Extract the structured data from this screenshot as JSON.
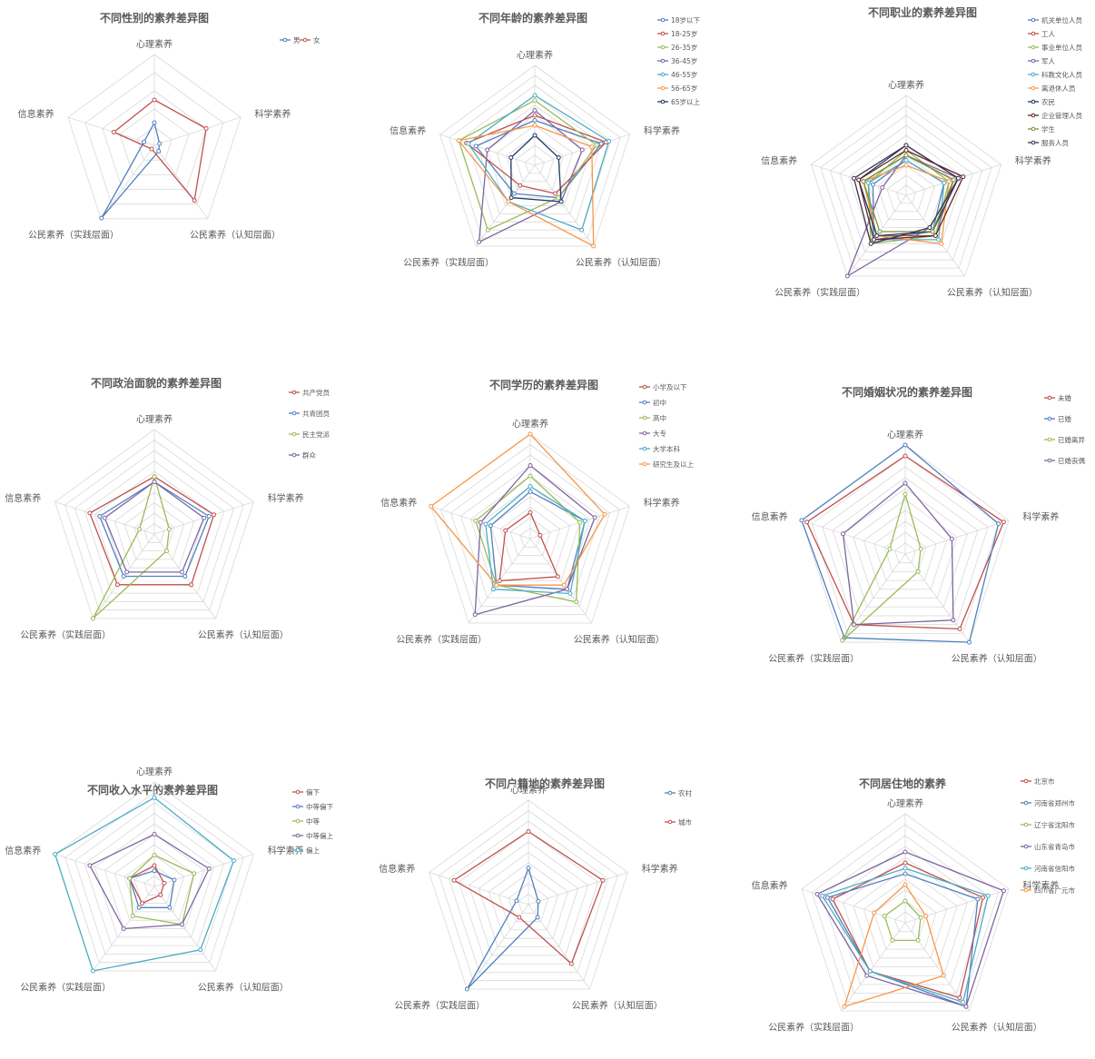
{
  "chart_data": [
    {
      "type": "radar",
      "title": "不同性别的素养差异图",
      "axes": [
        "心理素养",
        "科学素养",
        "公民素养（认知层面）",
        "公民素养（实践层面）",
        "信息素养"
      ],
      "rmax": 1.0,
      "rings": 5,
      "grid": true,
      "legend": "top-right",
      "series": [
        {
          "name": "男",
          "color": "#4f81bd",
          "values": [
            0.25,
            0.06,
            0.08,
            0.99,
            0.12
          ]
        },
        {
          "name": "女",
          "color": "#c0504d",
          "values": [
            0.5,
            0.6,
            0.75,
            0.05,
            0.47
          ]
        }
      ]
    },
    {
      "type": "radar",
      "title": "不同年龄的素养差异图",
      "axes": [
        "心理素养",
        "科学素养",
        "公民素养（认知层面）",
        "公民素养（实践层面）",
        "信息素养"
      ],
      "rmax": 1.0,
      "rings": 10,
      "grid": true,
      "legend": "top-right",
      "series": [
        {
          "name": "18岁以下",
          "color": "#4f81bd",
          "values": [
            0.45,
            0.7,
            0.4,
            0.35,
            0.62
          ]
        },
        {
          "name": "18-25岁",
          "color": "#c0504d",
          "values": [
            0.5,
            0.75,
            0.35,
            0.25,
            0.72
          ]
        },
        {
          "name": "26-35岁",
          "color": "#9bbb59",
          "values": [
            0.65,
            0.65,
            0.4,
            0.8,
            0.8
          ]
        },
        {
          "name": "36-45岁",
          "color": "#8064a2",
          "values": [
            0.55,
            0.5,
            0.45,
            0.95,
            0.5
          ]
        },
        {
          "name": "46-55岁",
          "color": "#4bacc6",
          "values": [
            0.7,
            0.78,
            0.8,
            0.45,
            0.7
          ]
        },
        {
          "name": "56-65岁",
          "color": "#f79646",
          "values": [
            0.4,
            0.6,
            1.0,
            0.45,
            0.8
          ]
        },
        {
          "name": "65岁以上",
          "color": "#1f3864",
          "values": [
            0.3,
            0.25,
            0.45,
            0.4,
            0.25
          ]
        }
      ]
    },
    {
      "type": "radar",
      "title": "不同职业的素养差异图",
      "axes": [
        "心理素养",
        "科学素养",
        "公民素养（认知层面）",
        "公民素养（实践层面）",
        "信息素养"
      ],
      "rmax": 1.0,
      "rings": 10,
      "grid": true,
      "legend": "top-right",
      "series": [
        {
          "name": "机关单位人员",
          "color": "#4f81bd",
          "values": [
            0.35,
            0.4,
            0.45,
            0.55,
            0.35
          ]
        },
        {
          "name": "工人",
          "color": "#c0504d",
          "values": [
            0.4,
            0.5,
            0.5,
            0.5,
            0.45
          ]
        },
        {
          "name": "事业单位人员",
          "color": "#9bbb59",
          "values": [
            0.45,
            0.45,
            0.5,
            0.6,
            0.4
          ]
        },
        {
          "name": "军人",
          "color": "#8064a2",
          "values": [
            0.4,
            0.55,
            0.4,
            1.0,
            0.25
          ]
        },
        {
          "name": "科教文化人员",
          "color": "#4bacc6",
          "values": [
            0.35,
            0.4,
            0.55,
            0.55,
            0.4
          ]
        },
        {
          "name": "离退休人员",
          "color": "#f79646",
          "values": [
            0.3,
            0.45,
            0.6,
            0.5,
            0.45
          ]
        },
        {
          "name": "农民",
          "color": "#1f3864",
          "values": [
            0.5,
            0.55,
            0.45,
            0.5,
            0.5
          ]
        },
        {
          "name": "企业管理人员",
          "color": "#632523",
          "values": [
            0.45,
            0.6,
            0.5,
            0.55,
            0.5
          ]
        },
        {
          "name": "学生",
          "color": "#76923c",
          "values": [
            0.4,
            0.5,
            0.45,
            0.45,
            0.45
          ]
        },
        {
          "name": "服务人员",
          "color": "#3f3151",
          "values": [
            0.5,
            0.55,
            0.4,
            0.6,
            0.55
          ]
        }
      ]
    },
    {
      "type": "radar",
      "title": "不同政治面貌的素养差异图",
      "axes": [
        "心理素养",
        "科学素养",
        "公民素养（认知层面）",
        "公民素养（实践层面）",
        "信息素养"
      ],
      "rmax": 1.0,
      "rings": 10,
      "grid": true,
      "legend": "top-right",
      "series": [
        {
          "name": "共产党员",
          "color": "#c0504d",
          "values": [
            0.55,
            0.6,
            0.6,
            0.6,
            0.65
          ]
        },
        {
          "name": "共青团员",
          "color": "#4f81bd",
          "values": [
            0.5,
            0.55,
            0.5,
            0.5,
            0.55
          ]
        },
        {
          "name": "民主党派",
          "color": "#9bbb59",
          "values": [
            0.55,
            0.15,
            0.2,
            1.0,
            0.15
          ]
        },
        {
          "name": "群众",
          "color": "#8064a2",
          "values": [
            0.5,
            0.5,
            0.45,
            0.45,
            0.5
          ]
        }
      ]
    },
    {
      "type": "radar",
      "title": "不同学历的素养差异图",
      "axes": [
        "心理素养",
        "科学素养",
        "公民素养（认知层面）",
        "公民素养（实践层面）",
        "信息素养"
      ],
      "rmax": 1.0,
      "rings": 10,
      "grid": true,
      "legend": "top-right",
      "series": [
        {
          "name": "小学及以下",
          "color": "#c0504d",
          "values": [
            0.25,
            0.1,
            0.45,
            0.5,
            0.25
          ]
        },
        {
          "name": "初中",
          "color": "#4f81bd",
          "values": [
            0.45,
            0.55,
            0.6,
            0.55,
            0.4
          ]
        },
        {
          "name": "高中",
          "color": "#9bbb59",
          "values": [
            0.6,
            0.5,
            0.75,
            0.55,
            0.55
          ]
        },
        {
          "name": "大专",
          "color": "#8064a2",
          "values": [
            0.7,
            0.65,
            0.6,
            0.9,
            0.5
          ]
        },
        {
          "name": "大学本科",
          "color": "#4bacc6",
          "values": [
            0.5,
            0.55,
            0.65,
            0.6,
            0.45
          ]
        },
        {
          "name": "研究生及以上",
          "color": "#f79646",
          "values": [
            1.0,
            0.75,
            0.55,
            0.55,
            1.0
          ]
        }
      ]
    },
    {
      "type": "radar",
      "title": "不同婚姻状况的素养差异图",
      "axes": [
        "心理素养",
        "科学素养",
        "公民素养（认知层面）",
        "公民素养（实践层面）",
        "信息素养"
      ],
      "rmax": 1.0,
      "rings": 10,
      "grid": true,
      "legend": "top-right",
      "series": [
        {
          "name": "未婚",
          "color": "#c0504d",
          "values": [
            0.9,
            0.95,
            0.85,
            0.8,
            0.95
          ]
        },
        {
          "name": "已婚",
          "color": "#4f81bd",
          "values": [
            1.0,
            0.9,
            1.0,
            0.95,
            1.0
          ]
        },
        {
          "name": "已婚离异",
          "color": "#9bbb59",
          "values": [
            0.55,
            0.15,
            0.2,
            0.98,
            0.15
          ]
        },
        {
          "name": "已婚丧偶",
          "color": "#8064a2",
          "values": [
            0.65,
            0.45,
            0.75,
            0.8,
            0.6
          ]
        }
      ]
    },
    {
      "type": "radar",
      "title": "不同收入水平的素养差异图",
      "axes": [
        "心理素养",
        "科学素养",
        "公民素养（认知层面）",
        "公民素养（实践层面）",
        "信息素养"
      ],
      "rmax": 1.0,
      "rings": 10,
      "grid": true,
      "legend": "top-right",
      "series": [
        {
          "name": "偏下",
          "color": "#c0504d",
          "values": [
            0.2,
            0.1,
            0.1,
            0.2,
            0.25
          ]
        },
        {
          "name": "中等偏下",
          "color": "#4f81bd",
          "values": [
            0.15,
            0.2,
            0.25,
            0.25,
            0.25
          ]
        },
        {
          "name": "中等",
          "color": "#9bbb59",
          "values": [
            0.3,
            0.4,
            0.45,
            0.35,
            0.25
          ]
        },
        {
          "name": "中等偏上",
          "color": "#8064a2",
          "values": [
            0.5,
            0.55,
            0.45,
            0.5,
            0.65
          ]
        },
        {
          "name": "偏上",
          "color": "#4bacc6",
          "values": [
            0.85,
            0.8,
            0.75,
            1.0,
            1.0
          ]
        }
      ]
    },
    {
      "type": "radar",
      "title": "不同户籍地的素养差异图",
      "axes": [
        "心理素养",
        "科学素养",
        "公民素养（认知层面）",
        "公民素养（实践层面）",
        "信息素养"
      ],
      "rmax": 1.0,
      "rings": 10,
      "grid": true,
      "legend": "top-right",
      "series": [
        {
          "name": "农村",
          "color": "#4f81bd",
          "values": [
            0.35,
            0.1,
            0.15,
            1.0,
            0.12
          ]
        },
        {
          "name": "城市",
          "color": "#c0504d",
          "values": [
            0.7,
            0.75,
            0.7,
            0.15,
            0.75
          ]
        }
      ]
    },
    {
      "type": "radar",
      "title": "不同居住地的素养",
      "axes": [
        "心理素养",
        "科学素养",
        "公民素养（认知层面）",
        "公民素养（实践层面）",
        "信息素养"
      ],
      "rmax": 1.0,
      "rings": 10,
      "grid": true,
      "legend": "top-right",
      "series": [
        {
          "name": "北京市",
          "color": "#c0504d",
          "values": [
            0.55,
            0.75,
            0.85,
            0.55,
            0.7
          ]
        },
        {
          "name": "河南省郑州市",
          "color": "#4f81bd",
          "values": [
            0.45,
            0.7,
            0.95,
            0.55,
            0.75
          ]
        },
        {
          "name": "辽宁省沈阳市",
          "color": "#9bbb59",
          "values": [
            0.2,
            0.15,
            0.2,
            0.2,
            0.2
          ]
        },
        {
          "name": "山东省青岛市",
          "color": "#8064a2",
          "values": [
            0.65,
            0.95,
            0.95,
            0.6,
            0.85
          ]
        },
        {
          "name": "河南省信阳市",
          "color": "#4bacc6",
          "values": [
            0.5,
            0.8,
            0.9,
            0.55,
            0.8
          ]
        },
        {
          "name": "四川省广元市",
          "color": "#f79646",
          "values": [
            0.35,
            0.2,
            0.6,
            0.95,
            0.3
          ]
        }
      ]
    }
  ]
}
